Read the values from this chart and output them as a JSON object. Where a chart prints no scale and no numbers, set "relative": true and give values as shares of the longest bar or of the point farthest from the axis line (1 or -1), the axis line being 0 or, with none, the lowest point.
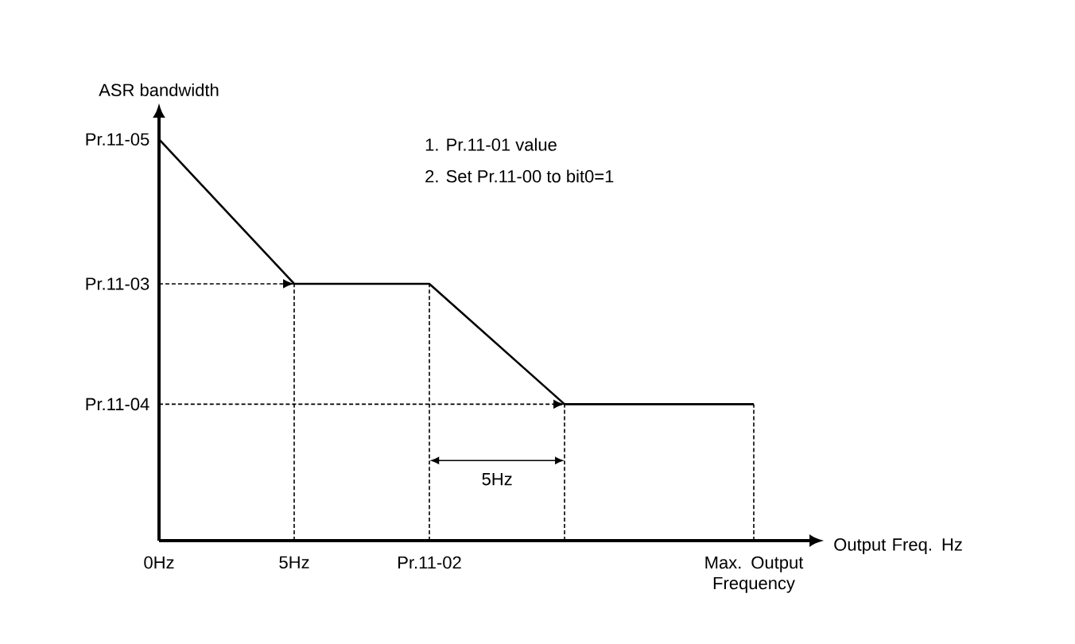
{
  "chart_data": {
    "type": "line",
    "ylabel": "ASR bandwidth",
    "xlabel": "Output Freq. Hz",
    "relative": true,
    "x": [
      0,
      5,
      10,
      15,
      22
    ],
    "series": [
      {
        "color": "#000000",
        "values": [
          1,
          0.64,
          0.64,
          0.34,
          0.34
        ]
      }
    ],
    "xlim": [
      0,
      24
    ],
    "xticks": [
      {
        "value": 0,
        "label": "0Hz"
      },
      {
        "value": 5,
        "label": "5Hz"
      },
      {
        "value": 10,
        "label": "Pr.11-02"
      },
      {
        "value": 22,
        "label": "Max. Output Frequency"
      }
    ],
    "ref_lines": [
      {
        "axis": "y",
        "value": 0.64,
        "line_style": "dashed",
        "label": "Pr.11-03"
      },
      {
        "axis": "y",
        "value": 0.34,
        "line_style": "dashed",
        "label": "Pr.11-04"
      },
      {
        "axis": "x",
        "value": 5,
        "line_style": "dashed"
      },
      {
        "axis": "x",
        "value": 10,
        "line_style": "dashed"
      },
      {
        "axis": "x",
        "value": 15,
        "line_style": "dashed"
      },
      {
        "axis": "x",
        "value": 22,
        "line_style": "dashed"
      }
    ],
    "annotations": [
      "1. Pr.11-01 value",
      "2. Set Pr.11-00 to bit0=1",
      {
        "text": "Pr.11-05",
        "x": 0,
        "y": 1
      },
      "5Hz"
    ],
    "grid": false,
    "marker": "none",
    "line_style": "solid"
  }
}
